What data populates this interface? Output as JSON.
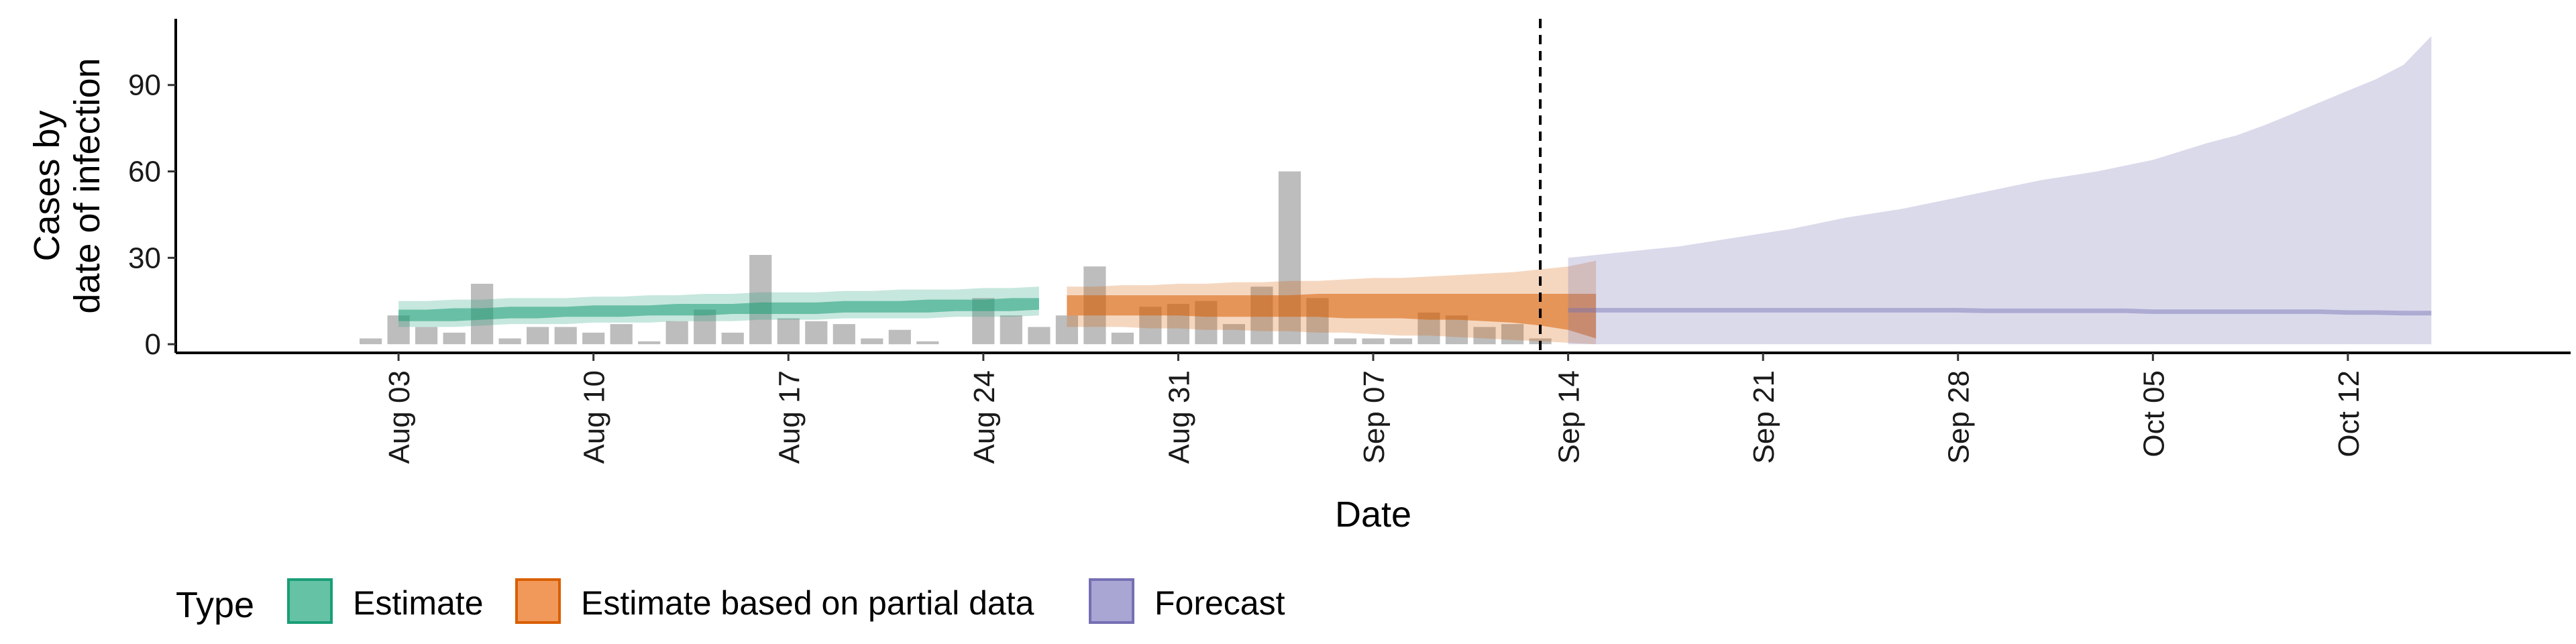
{
  "chart_data": {
    "type": "area",
    "title": "",
    "xlabel": "Date",
    "ylabel_lines": [
      "Cases by",
      "date of infection"
    ],
    "ylim": [
      -3,
      113
    ],
    "y_ticks": [
      0,
      30,
      60,
      90
    ],
    "x_range": [
      "2020-07-26",
      "2020-10-20"
    ],
    "x_ticks": [
      {
        "date": "2020-08-03",
        "label": "Aug 03"
      },
      {
        "date": "2020-08-10",
        "label": "Aug 10"
      },
      {
        "date": "2020-08-17",
        "label": "Aug 17"
      },
      {
        "date": "2020-08-24",
        "label": "Aug 24"
      },
      {
        "date": "2020-08-31",
        "label": "Aug 31"
      },
      {
        "date": "2020-09-07",
        "label": "Sep 07"
      },
      {
        "date": "2020-09-14",
        "label": "Sep 14"
      },
      {
        "date": "2020-09-21",
        "label": "Sep 21"
      },
      {
        "date": "2020-09-28",
        "label": "Sep 28"
      },
      {
        "date": "2020-10-05",
        "label": "Oct 05"
      },
      {
        "date": "2020-10-12",
        "label": "Oct 12"
      }
    ],
    "vline_date": "2020-09-13",
    "observed_cases": {
      "start_date": "2020-08-02",
      "values": [
        2,
        10,
        6,
        4,
        21,
        2,
        6,
        6,
        4,
        7,
        1,
        8,
        12,
        4,
        31,
        9,
        8,
        7,
        2,
        5,
        1,
        0,
        16,
        10,
        6,
        10,
        27,
        4,
        13,
        14,
        15,
        7,
        20,
        60,
        16,
        2,
        2,
        2,
        11,
        10,
        6,
        7,
        2
      ]
    },
    "series": [
      {
        "name": "Estimate",
        "color": "#1b9e77",
        "start_date": "2020-08-03",
        "median": [
          10,
          10,
          10,
          10,
          10.5,
          10.5,
          11,
          11,
          11,
          11.5,
          11.5,
          12,
          12,
          12,
          12,
          12,
          12.5,
          12.5,
          12.5,
          13,
          13.5,
          13,
          13.5,
          14
        ],
        "inner_lower": [
          8,
          8,
          8,
          8.5,
          9,
          9,
          9.5,
          9.5,
          9.5,
          10,
          10,
          10,
          10.5,
          10.5,
          10.5,
          10.5,
          11,
          11,
          11,
          11,
          11.5,
          11.5,
          11.5,
          12
        ],
        "inner_upper": [
          12,
          12,
          12.5,
          12.5,
          13,
          13,
          13,
          13.5,
          13.5,
          13.5,
          14,
          14,
          14,
          14.5,
          14.5,
          14.5,
          15,
          15,
          15,
          15.5,
          15.5,
          15.5,
          16,
          16
        ],
        "outer_lower": [
          6,
          6,
          6,
          6.5,
          7,
          7,
          7,
          7.5,
          7.5,
          7.5,
          8,
          8,
          8,
          8.5,
          8.5,
          8.5,
          9,
          9,
          9,
          9,
          9.5,
          9.5,
          9.5,
          10
        ],
        "outer_upper": [
          15,
          15,
          15.5,
          15.5,
          16,
          16,
          16,
          16.5,
          16.5,
          17,
          17,
          17.5,
          17.5,
          18,
          18,
          18,
          18.5,
          18.5,
          19,
          19,
          19,
          19.5,
          19.5,
          20
        ]
      },
      {
        "name": "Estimate based on partial data",
        "color": "#d95f02",
        "start_date": "2020-08-27",
        "median": [
          14,
          14,
          14,
          14,
          14,
          14,
          14,
          14,
          14,
          14.5,
          14.5,
          14.5,
          14.5,
          14,
          14,
          13.5,
          13,
          12.5,
          11.5,
          9.5
        ],
        "inner_lower": [
          10,
          10,
          10,
          10,
          10,
          9.5,
          9.5,
          9.5,
          9.5,
          9.5,
          9,
          9,
          9,
          8.5,
          8.5,
          8,
          7.5,
          6.5,
          5,
          2
        ],
        "inner_upper": [
          17,
          17,
          17,
          17,
          17,
          17,
          17,
          17,
          17,
          17.5,
          17.5,
          17.5,
          17.5,
          17.5,
          17.5,
          17.5,
          17.5,
          17.5,
          17.5,
          17.5
        ],
        "outer_lower": [
          6,
          6,
          6,
          5.5,
          5.5,
          5,
          5,
          4.5,
          4.5,
          4,
          4,
          3.5,
          3,
          3,
          2.5,
          2,
          1.5,
          1,
          0.5,
          0
        ],
        "outer_upper": [
          20,
          20,
          20.5,
          20.5,
          21,
          21,
          21.5,
          21.5,
          22,
          22,
          22.5,
          23,
          23,
          23.5,
          24,
          24.5,
          25,
          26,
          27,
          29
        ]
      },
      {
        "name": "Forecast",
        "color": "#7570b3",
        "start_date": "2020-09-14",
        "median": [
          12,
          12,
          12,
          12,
          12,
          12,
          12,
          12,
          12,
          12,
          12,
          12,
          12,
          12,
          12,
          11.8,
          11.8,
          11.8,
          11.8,
          11.8,
          11.8,
          11.5,
          11.5,
          11.5,
          11.5,
          11.5,
          11.5,
          11.5,
          11.2,
          11.2,
          11,
          11
        ],
        "outer_lower": [
          0,
          0,
          0,
          0,
          0,
          0,
          0,
          0,
          0,
          0,
          0,
          0,
          0,
          0,
          0,
          0,
          0,
          0,
          0,
          0,
          0,
          0,
          0,
          0,
          0,
          0,
          0,
          0,
          0,
          0,
          0,
          0
        ],
        "outer_upper": [
          30,
          31,
          32,
          33,
          34,
          35.5,
          37,
          38.5,
          40,
          42,
          44,
          45.5,
          47,
          49,
          51,
          53,
          55,
          57,
          58.5,
          60,
          62,
          64,
          67,
          70,
          72.5,
          76,
          80,
          84,
          88,
          92,
          97,
          107
        ],
        "inner_lower": [
          11,
          11,
          11,
          11,
          11,
          11,
          11,
          11,
          11,
          11,
          11,
          11,
          11,
          11,
          11,
          10.8,
          10.8,
          10.8,
          10.8,
          10.8,
          10.8,
          10.5,
          10.5,
          10.5,
          10.5,
          10.5,
          10.5,
          10.5,
          10.2,
          10.2,
          10,
          10
        ],
        "inner_upper": [
          12.6,
          12.6,
          12.6,
          12.6,
          12.6,
          12.6,
          12.6,
          12.6,
          12.6,
          12.6,
          12.6,
          12.6,
          12.6,
          12.6,
          12.6,
          12.4,
          12.4,
          12.4,
          12.4,
          12.4,
          12.4,
          12.1,
          12.1,
          12.1,
          12.1,
          12.1,
          12.1,
          12.1,
          11.8,
          11.8,
          11.6,
          11.6
        ]
      }
    ],
    "legend": {
      "title": "Type",
      "position": "bottom-left",
      "items": [
        {
          "label": "Estimate",
          "fill": "#66c2a5",
          "stroke": "#1b9e77"
        },
        {
          "label": "Estimate based on partial data",
          "fill": "#f0995a",
          "stroke": "#d95f02"
        },
        {
          "label": "Forecast",
          "fill": "#aaa6d4",
          "stroke": "#7570b3"
        }
      ]
    }
  }
}
